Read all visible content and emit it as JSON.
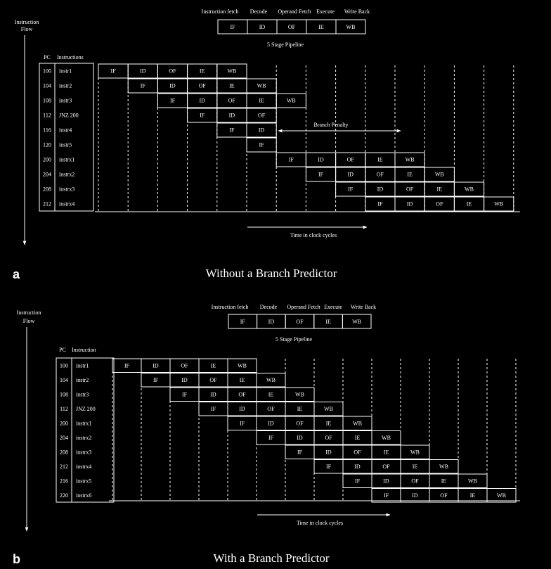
{
  "panels": [
    {
      "id": "a",
      "letter": "a",
      "caption": "Without a Branch Predictor",
      "flow_label": [
        "Instruction",
        "Flow"
      ],
      "pc_header": "PC",
      "instr_header": "Instructions",
      "legend": {
        "stage_names": [
          "Instruction fetch",
          "Decode",
          "Operand Fetch",
          "Execute",
          "Write Back"
        ],
        "cells": [
          "IF",
          "ID",
          "OF",
          "IE",
          "WB"
        ],
        "caption": "5 Stage Pipeline"
      },
      "time_label": "Time in clock cycles",
      "penalty_label": "Branch Penalty",
      "rows": [
        {
          "pc": "100",
          "instr": "instr1",
          "start": 0,
          "stages": [
            "IF",
            "ID",
            "OF",
            "IE",
            "WB"
          ]
        },
        {
          "pc": "104",
          "instr": "instr2",
          "start": 1,
          "stages": [
            "IF",
            "ID",
            "OF",
            "IE",
            "WB"
          ]
        },
        {
          "pc": "108",
          "instr": "instr3",
          "start": 2,
          "stages": [
            "IF",
            "ID",
            "OF",
            "IE",
            "WB"
          ]
        },
        {
          "pc": "112",
          "instr": "JNZ 200",
          "start": 3,
          "stages": [
            "IF",
            "ID",
            "OF"
          ]
        },
        {
          "pc": "116",
          "instr": "instr4",
          "start": 4,
          "stages": [
            "IF",
            "ID"
          ]
        },
        {
          "pc": "120",
          "instr": "instr5",
          "start": 5,
          "stages": [
            "IF"
          ]
        },
        {
          "pc": "200",
          "instr": "instrx1",
          "start": 6,
          "stages": [
            "IF",
            "ID",
            "OF",
            "IE",
            "WB"
          ]
        },
        {
          "pc": "204",
          "instr": "instrx2",
          "start": 7,
          "stages": [
            "IF",
            "ID",
            "OF",
            "IE",
            "WB"
          ]
        },
        {
          "pc": "208",
          "instr": "instrx3",
          "start": 8,
          "stages": [
            "IF",
            "ID",
            "OF",
            "IE",
            "WB"
          ]
        },
        {
          "pc": "212",
          "instr": "instrx4",
          "start": 9,
          "stages": [
            "IF",
            "ID",
            "OF",
            "IE",
            "WB"
          ]
        }
      ]
    },
    {
      "id": "b",
      "letter": "b",
      "caption": "With a Branch Predictor",
      "flow_label": [
        "Instruction",
        "Flow"
      ],
      "pc_header": "PC",
      "instr_header": "Instruction",
      "legend": {
        "stage_names": [
          "Instruction fetch",
          "Decode",
          "Operand Fetch",
          "Execute",
          "Write Back"
        ],
        "cells": [
          "IF",
          "ID",
          "OF",
          "IE",
          "WB"
        ],
        "caption": "5 Stage Pipeline"
      },
      "time_label": "Time in clock cycles",
      "penalty_label": "",
      "rows": [
        {
          "pc": "100",
          "instr": "instr1",
          "start": 0,
          "stages": [
            "IF",
            "ID",
            "OF",
            "IE",
            "WB"
          ]
        },
        {
          "pc": "104",
          "instr": "instr2",
          "start": 1,
          "stages": [
            "IF",
            "ID",
            "OF",
            "IE",
            "WB"
          ]
        },
        {
          "pc": "108",
          "instr": "instr3",
          "start": 2,
          "stages": [
            "IF",
            "ID",
            "OF",
            "IE",
            "WB"
          ]
        },
        {
          "pc": "112",
          "instr": "JNZ 200",
          "start": 3,
          "stages": [
            "IF",
            "ID",
            "OF",
            "IE",
            "WB"
          ]
        },
        {
          "pc": "200",
          "instr": "instrx1",
          "start": 4,
          "stages": [
            "IF",
            "ID",
            "OF",
            "IE",
            "WB"
          ]
        },
        {
          "pc": "204",
          "instr": "instrx2",
          "start": 5,
          "stages": [
            "IF",
            "ID",
            "OF",
            "IE",
            "WB"
          ]
        },
        {
          "pc": "208",
          "instr": "instrx3",
          "start": 6,
          "stages": [
            "IF",
            "ID",
            "OF",
            "IE",
            "WB"
          ]
        },
        {
          "pc": "212",
          "instr": "instrx4",
          "start": 7,
          "stages": [
            "IF",
            "ID",
            "OF",
            "IE",
            "WB"
          ]
        },
        {
          "pc": "216",
          "instr": "instrx5",
          "start": 8,
          "stages": [
            "IF",
            "ID",
            "OF",
            "IE",
            "WB"
          ]
        },
        {
          "pc": "220",
          "instr": "instrx6",
          "start": 9,
          "stages": [
            "IF",
            "ID",
            "OF",
            "IE",
            "WB"
          ]
        }
      ]
    }
  ]
}
